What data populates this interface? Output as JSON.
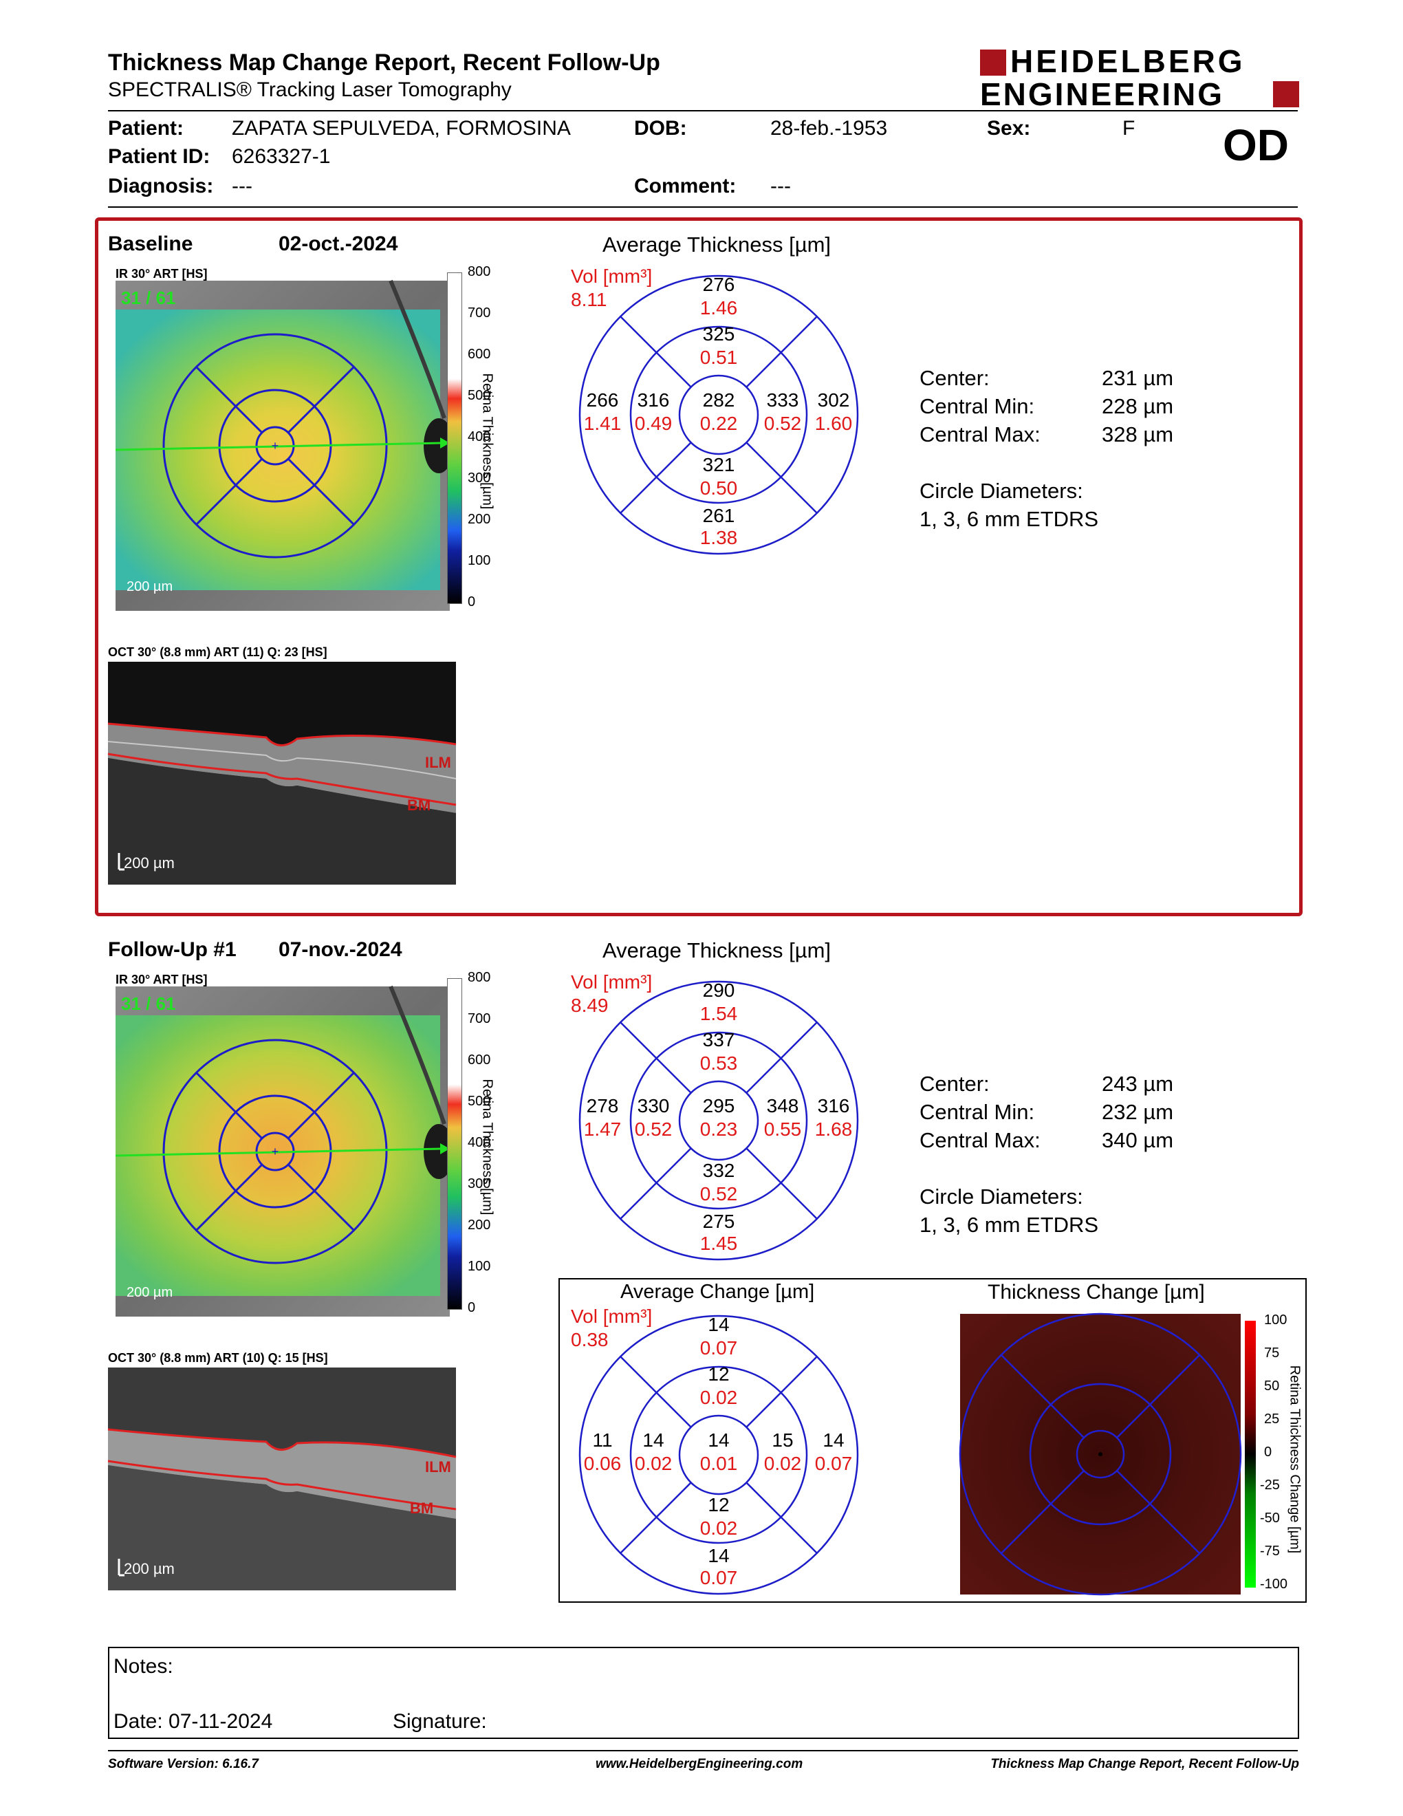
{
  "header": {
    "title": "Thickness Map Change Report, Recent Follow-Up",
    "subtitle": "SPECTRALIS® Tracking Laser Tomography",
    "logo_line1": "HEIDELBERG",
    "logo_line2": "ENGINEERING",
    "eye": "OD"
  },
  "patient": {
    "patient_label": "Patient:",
    "patient_name": "ZAPATA SEPULVEDA, FORMOSINA",
    "dob_label": "DOB:",
    "dob": "28-feb.-1953",
    "sex_label": "Sex:",
    "sex": "F",
    "id_label": "Patient ID:",
    "id": "6263327-1",
    "diagnosis_label": "Diagnosis:",
    "diagnosis": "---",
    "comment_label": "Comment:",
    "comment": "---"
  },
  "baseline": {
    "label": "Baseline",
    "date": "02-oct.-2024",
    "ir_caption": "IR 30° ART [HS]",
    "frame": "31 / 61",
    "scale": "200 µm",
    "colorbar_ticks": [
      "800",
      "700",
      "600",
      "500",
      "400",
      "300",
      "200",
      "100",
      "0"
    ],
    "colorbar_title": "Retina Thickness [µm]",
    "oct_caption": "OCT 30° (8.8 mm) ART (11) Q: 23 [HS]",
    "oct_scale": "200 µm",
    "ilm": "ILM",
    "bm": "BM",
    "avg_title": "Average Thickness [µm]",
    "vol_label": "Vol [mm³]",
    "vol_total": "8.11",
    "grid": {
      "outer_top": [
        "276",
        "1.46"
      ],
      "inner_top": [
        "325",
        "0.51"
      ],
      "outer_left": [
        "266",
        "1.41"
      ],
      "inner_left": [
        "316",
        "0.49"
      ],
      "center": [
        "282",
        "0.22"
      ],
      "inner_right": [
        "333",
        "0.52"
      ],
      "outer_right": [
        "302",
        "1.60"
      ],
      "inner_bottom": [
        "321",
        "0.50"
      ],
      "outer_bottom": [
        "261",
        "1.38"
      ]
    },
    "stats": [
      {
        "label": "Center:",
        "value": "231 µm"
      },
      {
        "label": "Central Min:",
        "value": "228 µm"
      },
      {
        "label": "Central Max:",
        "value": "328 µm"
      }
    ],
    "circle_label": "Circle Diameters:",
    "circle_value": "1, 3, 6 mm ETDRS"
  },
  "followup": {
    "label": "Follow-Up #1",
    "date": "07-nov.-2024",
    "ir_caption": "IR 30° ART [HS]",
    "frame": "31 / 61",
    "scale": "200 µm",
    "colorbar_ticks": [
      "800",
      "700",
      "600",
      "500",
      "400",
      "300",
      "200",
      "100",
      "0"
    ],
    "colorbar_title": "Retina Thickness [µm]",
    "oct_caption": "OCT 30° (8.8 mm) ART (10) Q: 15 [HS]",
    "oct_scale": "200 µm",
    "ilm": "ILM",
    "bm": "BM",
    "avg_title": "Average Thickness [µm]",
    "vol_label": "Vol [mm³]",
    "vol_total": "8.49",
    "grid": {
      "outer_top": [
        "290",
        "1.54"
      ],
      "inner_top": [
        "337",
        "0.53"
      ],
      "outer_left": [
        "278",
        "1.47"
      ],
      "inner_left": [
        "330",
        "0.52"
      ],
      "center": [
        "295",
        "0.23"
      ],
      "inner_right": [
        "348",
        "0.55"
      ],
      "outer_right": [
        "316",
        "1.68"
      ],
      "inner_bottom": [
        "332",
        "0.52"
      ],
      "outer_bottom": [
        "275",
        "1.45"
      ]
    },
    "stats": [
      {
        "label": "Center:",
        "value": "243 µm"
      },
      {
        "label": "Central Min:",
        "value": "232 µm"
      },
      {
        "label": "Central Max:",
        "value": "340 µm"
      }
    ],
    "circle_label": "Circle Diameters:",
    "circle_value": "1, 3, 6 mm ETDRS"
  },
  "change": {
    "avg_title": "Average Change [µm]",
    "vol_label": "Vol [mm³]",
    "vol_total": "0.38",
    "grid": {
      "outer_top": [
        "14",
        "0.07"
      ],
      "inner_top": [
        "12",
        "0.02"
      ],
      "outer_left": [
        "11",
        "0.06"
      ],
      "inner_left": [
        "14",
        "0.02"
      ],
      "center": [
        "14",
        "0.01"
      ],
      "inner_right": [
        "15",
        "0.02"
      ],
      "outer_right": [
        "14",
        "0.07"
      ],
      "inner_bottom": [
        "12",
        "0.02"
      ],
      "outer_bottom": [
        "14",
        "0.07"
      ]
    },
    "map_title": "Thickness Change [µm]",
    "colorbar_ticks": [
      "100",
      "75",
      "50",
      "25",
      "0",
      "-25",
      "-50",
      "-75",
      "-100"
    ],
    "colorbar_title": "Retina Thickness Change [µm]"
  },
  "notes": {
    "notes_label": "Notes:",
    "date_label": "Date: 07-11-2024",
    "signature_label": "Signature:"
  },
  "footer": {
    "software": "Software Version: 6.16.7",
    "website": "www.HeidelbergEngineering.com",
    "report": "Thickness Map Change Report, Recent Follow-Up"
  },
  "colors": {
    "accent_red": "#b8141e",
    "grid_blue": "#1c1cc8",
    "volume_red": "#e01818",
    "frame_green": "#22e022"
  }
}
